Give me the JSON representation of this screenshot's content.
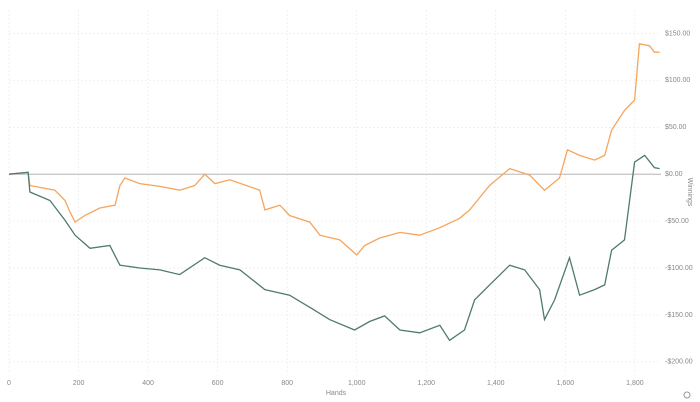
{
  "chart_data": {
    "type": "line",
    "x_label": "Hands",
    "y_label": "Winnings",
    "xlim": [
      0,
      1875
    ],
    "ylim": [
      -214,
      175
    ],
    "xticks": [
      0,
      200,
      400,
      600,
      800,
      {
        "value": 1000,
        "label": "1,000"
      },
      {
        "value": 1200,
        "label": "1,200"
      },
      {
        "value": 1400,
        "label": "1,400"
      },
      {
        "value": 1600,
        "label": "1,600"
      },
      {
        "value": 1800,
        "label": "1,800"
      }
    ],
    "yticks": [
      {
        "value": 150,
        "label": "$150.00"
      },
      {
        "value": 100,
        "label": "$100.00"
      },
      {
        "value": 50,
        "label": "$50.00"
      },
      {
        "value": 0,
        "label": "$0.00"
      },
      {
        "value": -50,
        "label": "-$50.00"
      },
      {
        "value": -100,
        "label": "-$100.00"
      },
      {
        "value": -150,
        "label": "-$150.00"
      },
      {
        "value": -200,
        "label": "-$200.00"
      }
    ],
    "grid": true,
    "y_axis_side": "right",
    "series": [
      {
        "color": "#f5a55c",
        "x": [
          0,
          55,
          60,
          132,
          161,
          175,
          190,
          218,
          261,
          305,
          319,
          333,
          376,
          434,
          491,
          534,
          563,
          592,
          635,
          721,
          736,
          779,
          807,
          865,
          894,
          951,
          1000,
          1023,
          1066,
          1124,
          1181,
          1239,
          1296,
          1325,
          1382,
          1440,
          1497,
          1540,
          1583,
          1606,
          1641,
          1684,
          1713,
          1733,
          1770,
          1799,
          1813,
          1842,
          1856,
          1871
        ],
        "values": [
          0,
          2,
          -12,
          -17,
          -28,
          -40,
          -51,
          -44,
          -36,
          -33,
          -12,
          -4,
          -10,
          -13,
          -17,
          -12,
          0,
          -10,
          -6,
          -17,
          -38,
          -33,
          -44,
          -51,
          -65,
          -70,
          -86,
          -76,
          -68,
          -62,
          -65,
          -57,
          -47,
          -38,
          -12,
          6,
          -1,
          -17,
          -4,
          26,
          20,
          15,
          20,
          47,
          68,
          79,
          139,
          137,
          130,
          130
        ]
      },
      {
        "color": "#4e7a6f",
        "x": [
          0,
          55,
          60,
          118,
          161,
          190,
          233,
          290,
          319,
          376,
          434,
          491,
          563,
          606,
          664,
          736,
          807,
          879,
          922,
          994,
          1037,
          1080,
          1124,
          1181,
          1239,
          1267,
          1310,
          1339,
          1382,
          1440,
          1483,
          1526,
          1540,
          1569,
          1612,
          1641,
          1684,
          1713,
          1733,
          1770,
          1799,
          1828,
          1856,
          1871
        ],
        "values": [
          0,
          2,
          -19,
          -28,
          -49,
          -65,
          -79,
          -76,
          -97,
          -100,
          -102,
          -107,
          -89,
          -97,
          -102,
          -123,
          -129,
          -145,
          -155,
          -166,
          -157,
          -151,
          -166,
          -169,
          -161,
          -177,
          -166,
          -134,
          -118,
          -97,
          -102,
          -123,
          -155,
          -134,
          -89,
          -129,
          -123,
          -118,
          -81,
          -70,
          13,
          20,
          7,
          6
        ]
      }
    ]
  }
}
